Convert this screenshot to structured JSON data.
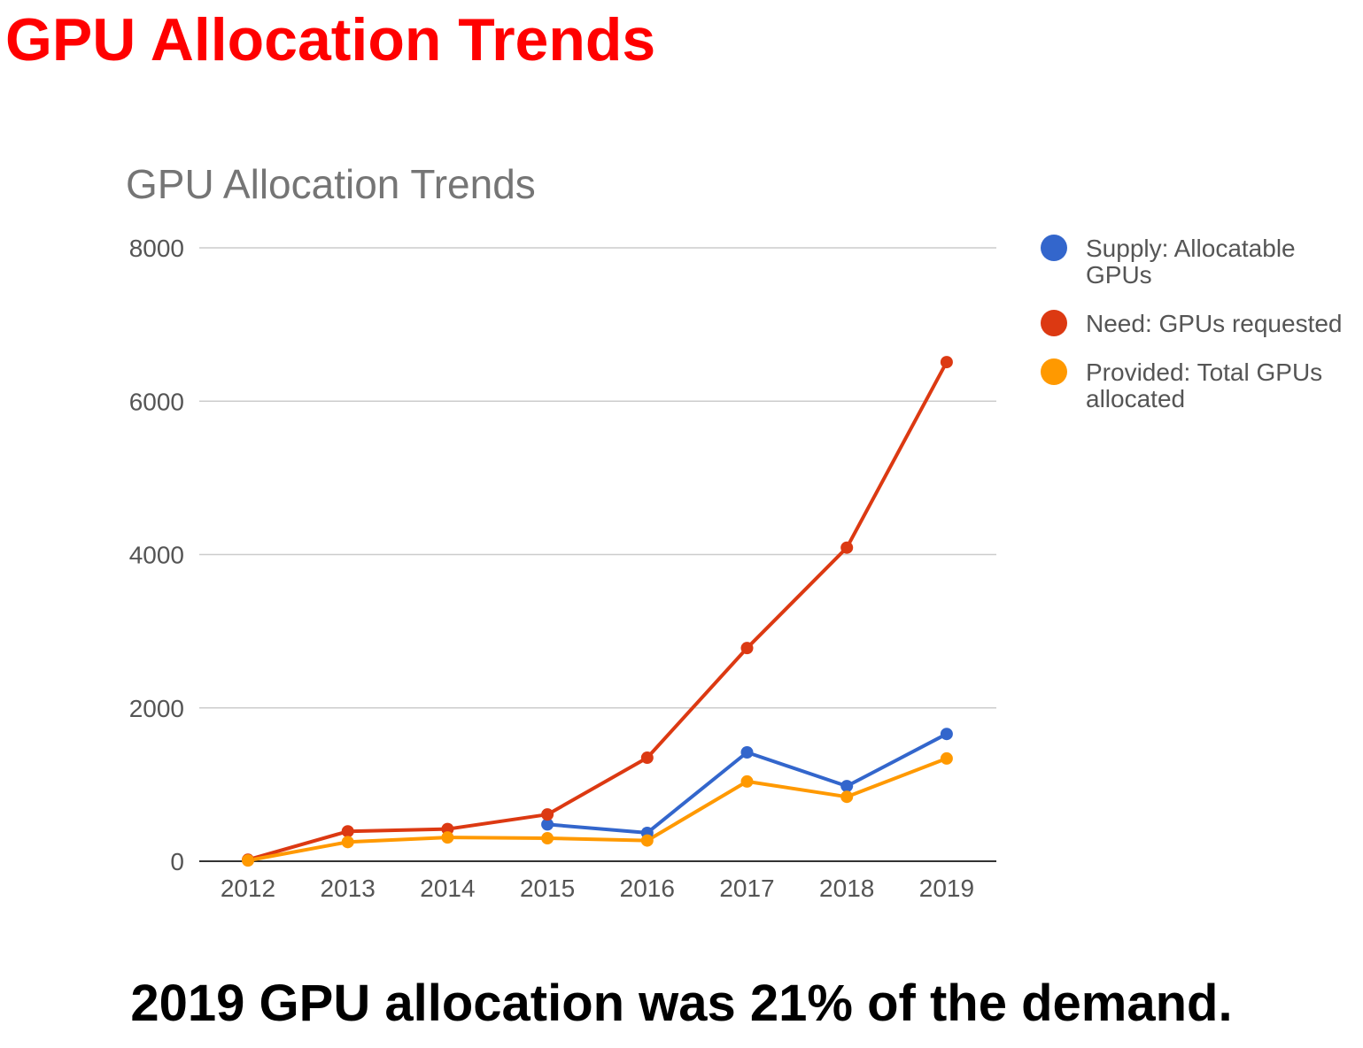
{
  "slide": {
    "title": "GPU Allocation Trends",
    "caption": "2019 GPU allocation was 21% of the demand."
  },
  "chart_data": {
    "type": "line",
    "title": "GPU Allocation Trends",
    "xlabel": "",
    "ylabel": "",
    "categories": [
      "2012",
      "2013",
      "2014",
      "2015",
      "2016",
      "2017",
      "2018",
      "2019"
    ],
    "y_ticks": [
      "0",
      "2000",
      "4000",
      "6000",
      "8000"
    ],
    "ylim": [
      0,
      8000
    ],
    "grid": true,
    "legend_position": "right",
    "series": [
      {
        "name": "Supply: Allocatable GPUs",
        "legend_lines": [
          "Supply: Allocatable",
          "GPUs"
        ],
        "color": "#3366cc",
        "values": [
          null,
          null,
          null,
          480,
          370,
          1420,
          980,
          1660
        ]
      },
      {
        "name": "Need: GPUs requested",
        "legend_lines": [
          "Need: GPUs requested"
        ],
        "color": "#dc3912",
        "values": [
          20,
          390,
          420,
          610,
          1350,
          2780,
          4090,
          6510
        ]
      },
      {
        "name": "Provided: Total GPUs allocated",
        "legend_lines": [
          "Provided: Total GPUs",
          "allocated"
        ],
        "color": "#ff9900",
        "values": [
          10,
          250,
          310,
          300,
          270,
          1040,
          840,
          1340
        ]
      }
    ]
  }
}
